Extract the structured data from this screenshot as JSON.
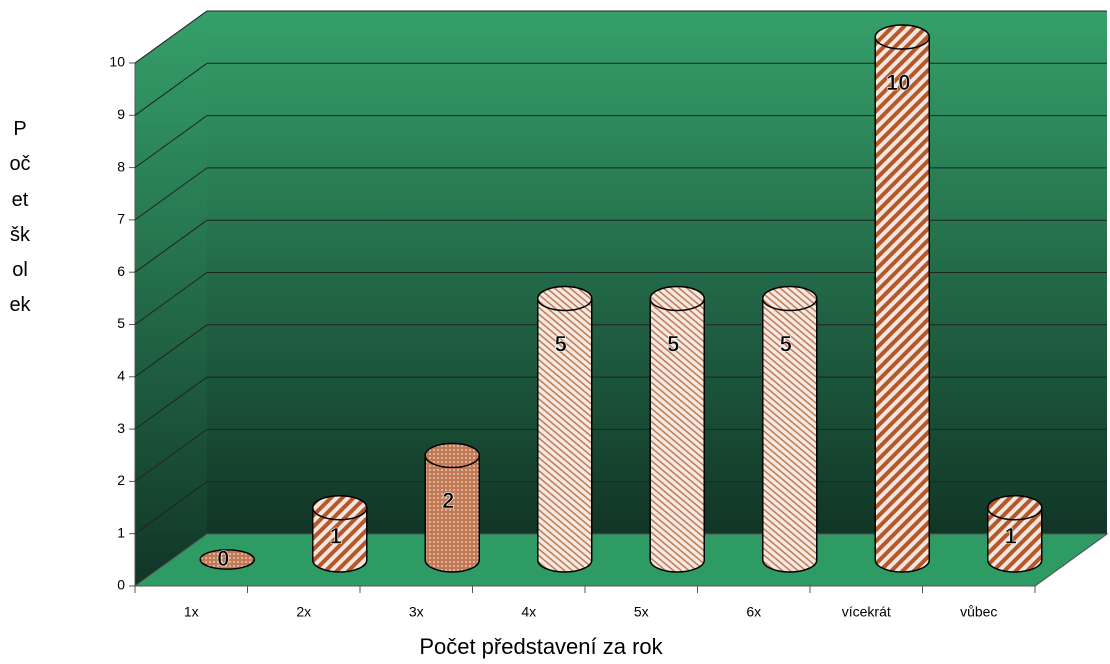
{
  "chart_data": {
    "type": "bar3d",
    "x_label": "Počet představení za rok",
    "y_label": "Počet školek",
    "categories": [
      "1x",
      "2x",
      "3x",
      "4x",
      "5x",
      "6x",
      "vícekrát",
      "vůbec"
    ],
    "values": [
      0,
      1,
      2,
      5,
      5,
      5,
      10,
      1
    ],
    "color": "#b4582c",
    "ylim": [
      0,
      10
    ],
    "yticks": [
      0,
      1,
      2,
      3,
      4,
      5,
      6,
      7,
      8,
      9,
      10
    ],
    "grid": true
  }
}
